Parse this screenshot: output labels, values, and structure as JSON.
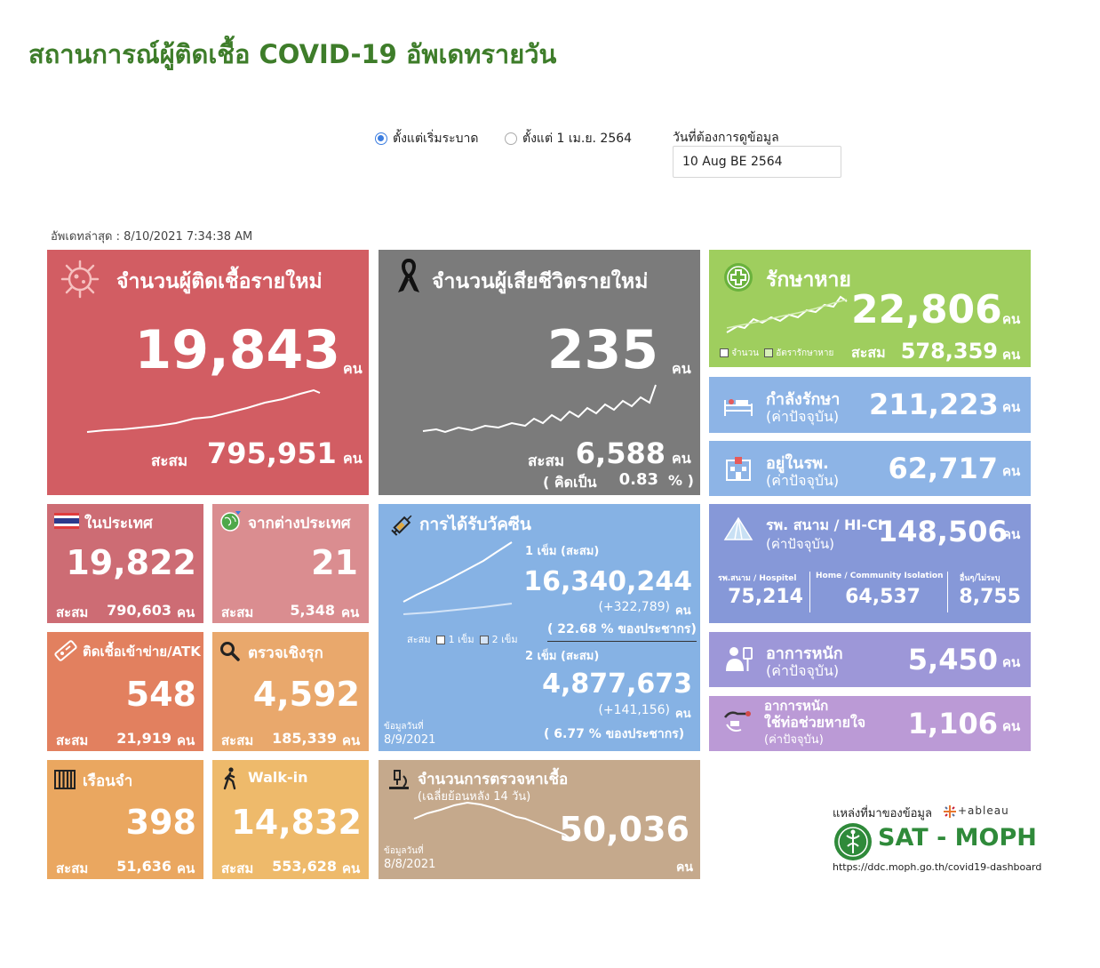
{
  "header": {
    "title": "สถานการณ์ผู้ติดเชื้อ COVID-19 อัพเดทรายวัน"
  },
  "filters": {
    "option1": "ตั้งแต่เริ่มระบาด",
    "option2": "ตั้งแต่ 1 เม.ย. 2564",
    "selected": "option1",
    "date_label": "วันที่ต้องการดูข้อมูล",
    "date_value": "10 Aug BE 2564"
  },
  "updated": "อัพเดทล่าสุด : 8/10/2021 7:34:38 AM",
  "unit": "คน",
  "cum_label": "สะสม",
  "new_cases": {
    "label": "จำนวนผู้ติดเชื้อรายใหม่",
    "value": "19,843",
    "cumulative": "795,951"
  },
  "deaths": {
    "label": "จำนวนผู้เสียชีวิตรายใหม่",
    "value": "235",
    "cumulative": "6,588",
    "rate_prefix": "( คิดเป็น",
    "rate": "0.83",
    "rate_suffix": "% )"
  },
  "recovered": {
    "label": "รักษาหาย",
    "value": "22,806",
    "cumulative": "578,359",
    "legend1": "จำนวน",
    "legend2": "อัตรารักษาหาย"
  },
  "treating": {
    "label1": "กำลังรักษา",
    "label2": "(ค่าปัจจุบัน)",
    "value": "211,223"
  },
  "hospital": {
    "label1": "อยู่ในรพ.",
    "label2": "(ค่าปัจจุบัน)",
    "value": "62,717"
  },
  "domestic": {
    "label": "ในประเทศ",
    "value": "19,822",
    "cumulative": "790,603"
  },
  "foreign": {
    "label": "จากต่างประเทศ",
    "value": "21",
    "cumulative": "5,348"
  },
  "atk": {
    "label": "ติดเชื้อเข้าข่าย/ATK",
    "value": "548",
    "cumulative": "21,919"
  },
  "proactive": {
    "label": "ตรวจเชิงรุก",
    "value": "4,592",
    "cumulative": "185,339"
  },
  "prison": {
    "label": "เรือนจำ",
    "value": "398",
    "cumulative": "51,636"
  },
  "walkin": {
    "label": "Walk-in",
    "value": "14,832",
    "cumulative": "553,628"
  },
  "vaccine": {
    "label": "การได้รับวัคซีน",
    "dose1_label": "1 เข็ม (สะสม)",
    "dose1_value": "16,340,244",
    "dose1_change": "(+322,789)",
    "dose1_pct_open": "(",
    "dose1_pct": "22.68",
    "dose1_pct_suffix": "% ของประชากร)",
    "dose2_label": "2 เข็ม (สะสม)",
    "dose2_value": "4,877,673",
    "dose2_change": "(+141,156)",
    "dose2_pct_open": "(",
    "dose2_pct": "6.77",
    "dose2_pct_suffix": "% ของประชากร)",
    "legend_cum": "สะสม",
    "legend_1": "1 เข็ม",
    "legend_2": "2 เข็ม",
    "data_date_label": "ข้อมูลวันที่",
    "data_date": "8/9/2021"
  },
  "field": {
    "label1": "รพ. สนาม / HI-CI",
    "label2": "(ค่าปัจจุบัน)",
    "value": "148,506",
    "sub1_label": "รพ.สนาม / Hospitel",
    "sub1_value": "75,214",
    "sub2_label": "Home / Community Isolation",
    "sub2_value": "64,537",
    "sub3_label": "อื่นๆ/ไม่ระบุ",
    "sub3_value": "8,755"
  },
  "severe": {
    "label1": "อาการหนัก",
    "label2": "(ค่าปัจจุบัน)",
    "value": "5,450"
  },
  "ventilator": {
    "label1": "อาการหนัก",
    "label2": "ใช้ท่อช่วยหายใจ",
    "label3": "(ค่าปัจจุบัน)",
    "value": "1,106"
  },
  "tests": {
    "label": "จำนวนการตรวจหาเชื้อ",
    "sublabel": "(เฉลี่ยย้อนหลัง 14 วัน)",
    "value": "50,036",
    "data_date_label": "ข้อมูลวันที่",
    "data_date": "8/8/2021"
  },
  "source": {
    "label": "แหล่งที่มาของข้อมูล",
    "tableau": "+ableau",
    "org": "SAT - MOPH",
    "url": "https://ddc.moph.go.th/covid19-dashboard"
  },
  "colors": {
    "title": "#3e7d2a",
    "new_cases": "#d25d63",
    "deaths": "#7b7b7b",
    "recovered": "#9fce5e",
    "treating": "#8db4e6",
    "domestic": "#cd6c74",
    "foreign": "#da8d90",
    "atk": "#e2805f",
    "proactive": "#e9a86c",
    "prison": "#eaa760",
    "walkin": "#eeba6b",
    "vaccine": "#86b2e4",
    "tests": "#c5a98c",
    "field": "#8698d8",
    "severe": "#9d97d8",
    "ventilator": "#bb9ad6"
  }
}
